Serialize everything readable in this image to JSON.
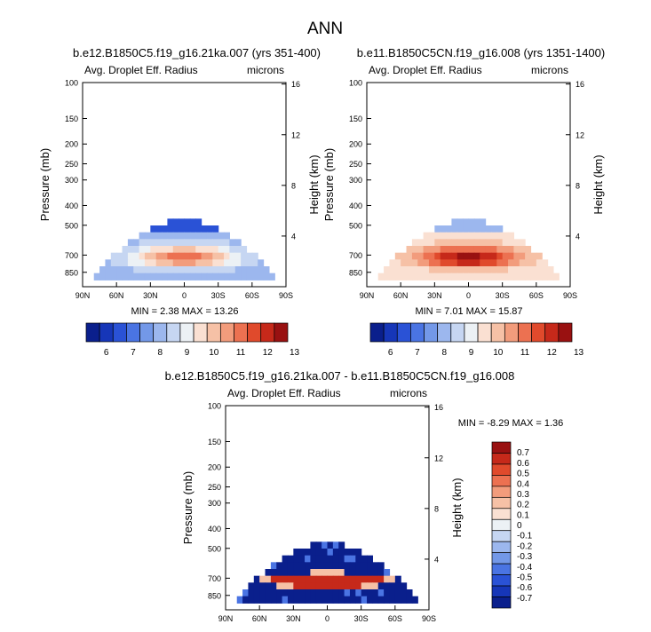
{
  "figure": {
    "title": "ANN"
  },
  "palette": [
    "#0a1f8c",
    "#1636b8",
    "#2a52d6",
    "#4a74e3",
    "#7398e8",
    "#9cb7ee",
    "#c6d6f2",
    "#ecf1f5",
    "#fae0d2",
    "#f6c1a6",
    "#f29c7c",
    "#ec7151",
    "#e04a2c",
    "#c6291a",
    "#991111"
  ],
  "chart_data": [
    {
      "type": "heatmap",
      "case": "b.e12.B1850C5.f19_g16.21ka.007 (yrs 351-400)",
      "variable": "Avg. Droplet Eff. Radius",
      "units": "microns",
      "ylabel": "Pressure (mb)",
      "ylabel_right": "Height (km)",
      "x_ticks": [
        "90N",
        "60N",
        "30N",
        "0",
        "30S",
        "60S",
        "90S"
      ],
      "xlim": [
        90,
        -90
      ],
      "y_ticks": [
        100,
        150,
        200,
        250,
        300,
        400,
        500,
        700,
        850
      ],
      "ylim": [
        100,
        1000
      ],
      "y_scale": "log",
      "height_ticks": [
        16,
        12,
        8,
        4
      ],
      "min": 2.38,
      "max": 13.26,
      "stats_text": "MIN =   2.38   MAX =  13.26",
      "legend": {
        "orientation": "horizontal",
        "labels": [
          "6",
          "7",
          "8",
          "9",
          "10",
          "11",
          "12",
          "13"
        ]
      }
    },
    {
      "type": "heatmap",
      "case": "b.e11.B1850C5CN.f19_g16.008 (yrs 1351-1400)",
      "variable": "Avg. Droplet Eff. Radius",
      "units": "microns",
      "ylabel": "Pressure (mb)",
      "ylabel_right": "Height (km)",
      "x_ticks": [
        "90N",
        "60N",
        "30N",
        "0",
        "30S",
        "60S",
        "90S"
      ],
      "xlim": [
        90,
        -90
      ],
      "y_ticks": [
        100,
        150,
        200,
        250,
        300,
        400,
        500,
        700,
        850
      ],
      "ylim": [
        100,
        1000
      ],
      "y_scale": "log",
      "height_ticks": [
        16,
        12,
        8,
        4
      ],
      "min": 7.01,
      "max": 15.87,
      "stats_text": "MIN =   7.01   MAX =  15.87",
      "legend": {
        "orientation": "horizontal",
        "labels": [
          "6",
          "7",
          "8",
          "9",
          "10",
          "11",
          "12",
          "13"
        ]
      }
    },
    {
      "type": "heatmap",
      "case": "b.e12.B1850C5.f19_g16.21ka.007 - b.e11.B1850C5CN.f19_g16.008",
      "variable": "Avg. Droplet Eff. Radius",
      "units": "microns",
      "ylabel": "Pressure (mb)",
      "ylabel_right": "Height (km)",
      "x_ticks": [
        "90N",
        "60N",
        "30N",
        "0",
        "30S",
        "60S",
        "90S"
      ],
      "xlim": [
        90,
        -90
      ],
      "y_ticks": [
        100,
        150,
        200,
        250,
        300,
        400,
        500,
        700,
        850
      ],
      "ylim": [
        100,
        1000
      ],
      "y_scale": "log",
      "height_ticks": [
        16,
        12,
        8,
        4
      ],
      "min": -8.29,
      "max": 1.36,
      "stats_text": "MIN =  -8.29   MAX =   1.36",
      "legend": {
        "orientation": "vertical",
        "labels": [
          "0.7",
          "0.6",
          "0.5",
          "0.4",
          "0.3",
          "0.2",
          "0.1",
          "0",
          "-0.1",
          "-0.2",
          "-0.3",
          "-0.4",
          "-0.5",
          "-0.6",
          "-0.7"
        ]
      }
    }
  ]
}
